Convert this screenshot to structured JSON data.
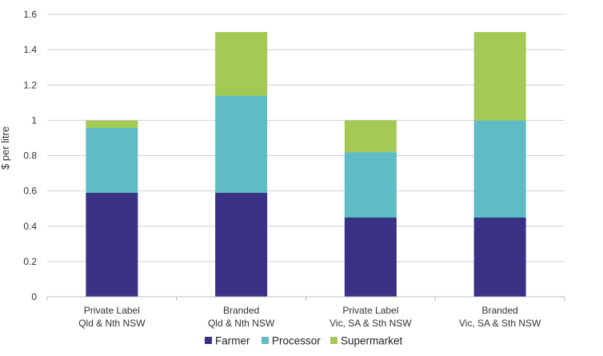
{
  "chart_data": {
    "type": "bar",
    "stacked": true,
    "title": "",
    "xlabel": "",
    "ylabel": "$ per litre",
    "ylim": [
      0,
      1.6
    ],
    "yticks": [
      0,
      0.2,
      0.4,
      0.6,
      0.8,
      1,
      1.2,
      1.4,
      1.6
    ],
    "ytick_labels": [
      "0",
      "0.2",
      "0.4",
      "0.6",
      "0.8",
      "1",
      "1.2",
      "1.4",
      "1.6"
    ],
    "grid": true,
    "legend_position": "bottom",
    "categories": [
      [
        "Private Label",
        "Qld & Nth NSW"
      ],
      [
        "Branded",
        "Qld & Nth NSW"
      ],
      [
        "Private Label",
        "Vic, SA & Sth NSW"
      ],
      [
        "Branded",
        "Vic, SA & Sth NSW"
      ]
    ],
    "series": [
      {
        "name": "Farmer",
        "color": "#3a3185",
        "values": [
          0.59,
          0.59,
          0.45,
          0.45
        ]
      },
      {
        "name": "Processor",
        "color": "#5fbcc6",
        "values": [
          0.37,
          0.55,
          0.37,
          0.55
        ]
      },
      {
        "name": "Supermarket",
        "color": "#a4c955",
        "values": [
          0.04,
          0.36,
          0.18,
          0.5
        ]
      }
    ]
  }
}
